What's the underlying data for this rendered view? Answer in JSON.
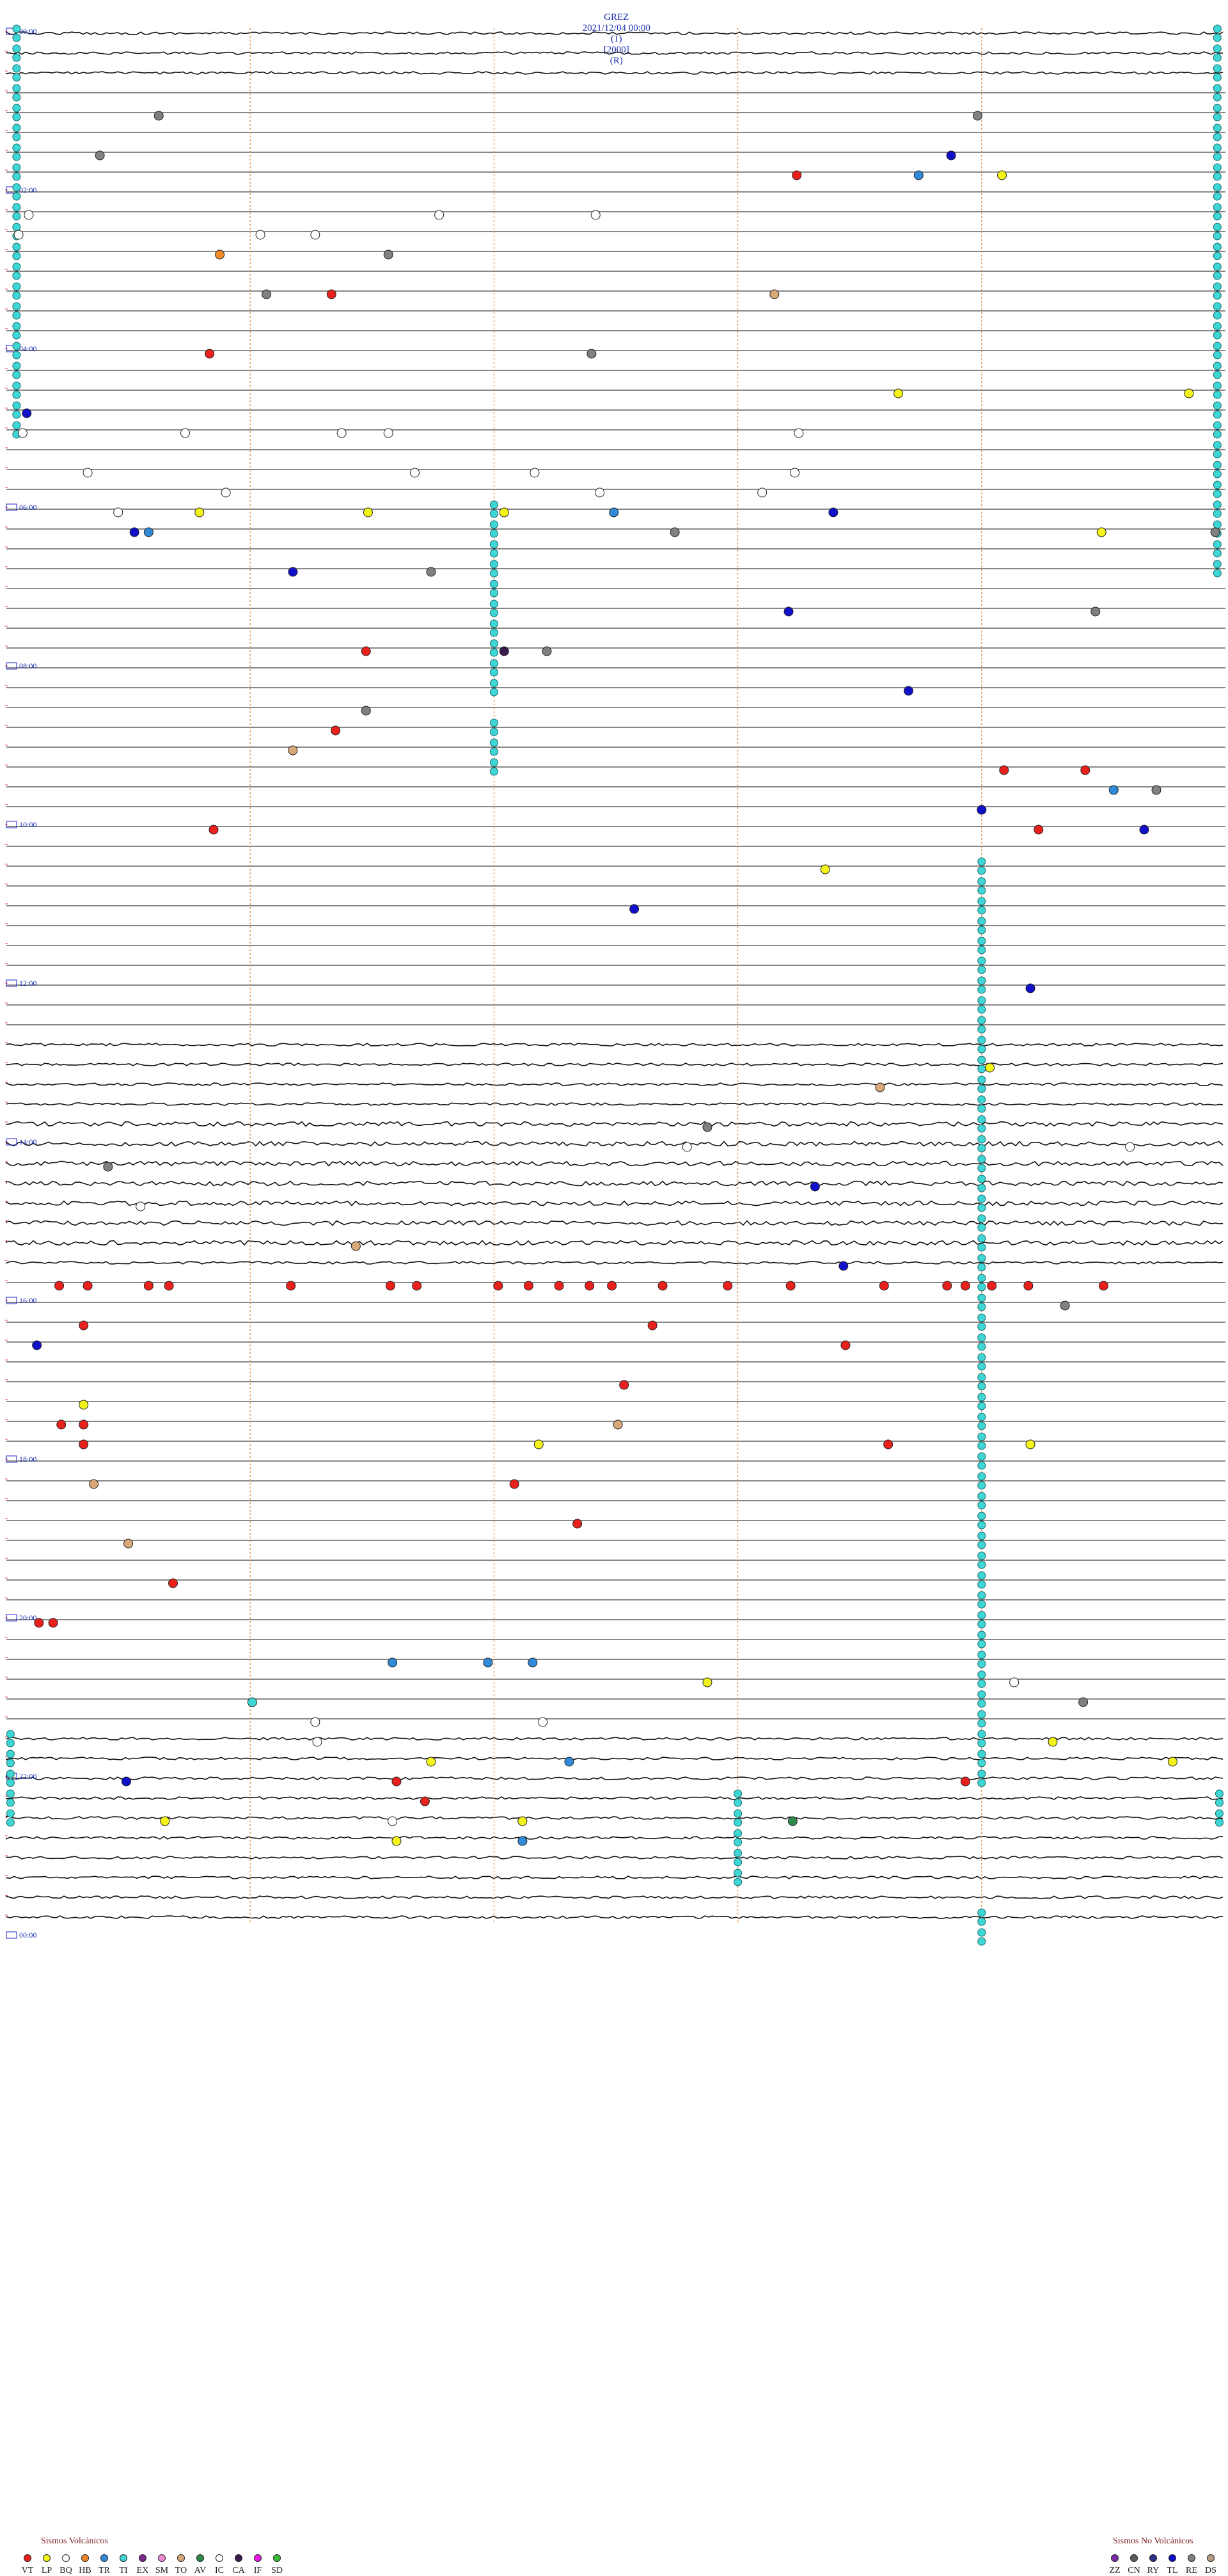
{
  "header": {
    "station": "GREZ",
    "datetime": "2021/12/04 00:00",
    "channel": "(1)",
    "scale": "[2000]",
    "flag": "(R)"
  },
  "chart_data": {
    "type": "scatter",
    "title": "GREZ 2021/12/04 00:00 (1) [2000] (R)",
    "xlabel": "",
    "ylabel": "",
    "xlim": [
      0,
      60
    ],
    "x_unit": "minute of row",
    "rows_per_hour": 4,
    "rows": 96,
    "hour_labels": [
      "00:00",
      "02:00",
      "04:00",
      "06:00",
      "08:00",
      "10:00",
      "12:00",
      "14:00",
      "16:00",
      "18:00",
      "20:00",
      "22:00",
      "00:00"
    ],
    "legend_placement": "bottom",
    "marker_colors": {
      "VT": "#e8211c",
      "LP": "#f4f418",
      "BQ": "#ffffff",
      "HB": "#f08a2a",
      "TR": "#2f8ad8",
      "TI": "#3fd6d6",
      "EX": "#7a2a8c",
      "SM": "#f08ad8",
      "TO": "#d8a878",
      "AV": "#2e8a4a",
      "IC": "#ffffff",
      "CA": "#3a1a4a",
      "IF": "#e818e8",
      "SD": "#3ab83a",
      "ZZ": "#7a2aa8",
      "CN": "#5a5a5a",
      "RY": "#303090",
      "TL": "#1010c8",
      "RE": "#808080",
      "DS": "#b89c80"
    },
    "events": [
      {
        "row": 4,
        "minute": 7.5,
        "type": "RE"
      },
      {
        "row": 4,
        "minute": 47.8,
        "type": "RE"
      },
      {
        "row": 6,
        "minute": 4.6,
        "type": "RE"
      },
      {
        "row": 6,
        "minute": 46.5,
        "type": "TL"
      },
      {
        "row": 7,
        "minute": 38.9,
        "type": "VT"
      },
      {
        "row": 7,
        "minute": 49.0,
        "type": "LP"
      },
      {
        "row": 7,
        "minute": 44.9,
        "type": "TR"
      },
      {
        "row": 9,
        "minute": 1.1,
        "type": "BQ"
      },
      {
        "row": 9,
        "minute": 21.3,
        "type": "BQ"
      },
      {
        "row": 9,
        "minute": 29.0,
        "type": "BQ"
      },
      {
        "row": 10,
        "minute": 0.6,
        "type": "BQ"
      },
      {
        "row": 10,
        "minute": 12.5,
        "type": "BQ"
      },
      {
        "row": 10,
        "minute": 15.2,
        "type": "BQ"
      },
      {
        "row": 11,
        "minute": 10.5,
        "type": "HB"
      },
      {
        "row": 11,
        "minute": 18.8,
        "type": "RE"
      },
      {
        "row": 13,
        "minute": 12.8,
        "type": "RE"
      },
      {
        "row": 13,
        "minute": 16.0,
        "type": "VT"
      },
      {
        "row": 13,
        "minute": 37.8,
        "type": "TO"
      },
      {
        "row": 16,
        "minute": 10.0,
        "type": "VT"
      },
      {
        "row": 16,
        "minute": 28.8,
        "type": "RE"
      },
      {
        "row": 18,
        "minute": 43.9,
        "type": "LP"
      },
      {
        "row": 18,
        "minute": 58.2,
        "type": "LP"
      },
      {
        "row": 19,
        "minute": 1.0,
        "type": "TL"
      },
      {
        "row": 20,
        "minute": 0.8,
        "type": "BQ"
      },
      {
        "row": 20,
        "minute": 8.8,
        "type": "BQ"
      },
      {
        "row": 20,
        "minute": 16.5,
        "type": "BQ"
      },
      {
        "row": 20,
        "minute": 18.8,
        "type": "BQ"
      },
      {
        "row": 20,
        "minute": 39.0,
        "type": "BQ"
      },
      {
        "row": 22,
        "minute": 4.0,
        "type": "BQ"
      },
      {
        "row": 22,
        "minute": 20.1,
        "type": "BQ"
      },
      {
        "row": 22,
        "minute": 26.0,
        "type": "BQ"
      },
      {
        "row": 22,
        "minute": 38.8,
        "type": "BQ"
      },
      {
        "row": 23,
        "minute": 10.8,
        "type": "BQ"
      },
      {
        "row": 23,
        "minute": 29.2,
        "type": "BQ"
      },
      {
        "row": 23,
        "minute": 37.2,
        "type": "BQ"
      },
      {
        "row": 24,
        "minute": 5.5,
        "type": "BQ"
      },
      {
        "row": 24,
        "minute": 9.5,
        "type": "LP"
      },
      {
        "row": 24,
        "minute": 17.8,
        "type": "LP"
      },
      {
        "row": 24,
        "minute": 24.5,
        "type": "LP"
      },
      {
        "row": 24,
        "minute": 29.9,
        "type": "TR"
      },
      {
        "row": 24,
        "minute": 40.7,
        "type": "TL"
      },
      {
        "row": 25,
        "minute": 7.0,
        "type": "TR"
      },
      {
        "row": 25,
        "minute": 6.3,
        "type": "TL"
      },
      {
        "row": 25,
        "minute": 32.9,
        "type": "RE"
      },
      {
        "row": 25,
        "minute": 59.5,
        "type": "RE"
      },
      {
        "row": 25,
        "minute": 53.9,
        "type": "LP"
      },
      {
        "row": 27,
        "minute": 14.1,
        "type": "TL"
      },
      {
        "row": 27,
        "minute": 20.9,
        "type": "RE"
      },
      {
        "row": 29,
        "minute": 38.5,
        "type": "TL"
      },
      {
        "row": 29,
        "minute": 53.6,
        "type": "RE"
      },
      {
        "row": 31,
        "minute": 17.7,
        "type": "VT"
      },
      {
        "row": 31,
        "minute": 24.5,
        "type": "CA"
      },
      {
        "row": 31,
        "minute": 26.6,
        "type": "RE"
      },
      {
        "row": 33,
        "minute": 44.4,
        "type": "TL"
      },
      {
        "row": 34,
        "minute": 17.7,
        "type": "RE"
      },
      {
        "row": 35,
        "minute": 16.2,
        "type": "VT"
      },
      {
        "row": 36,
        "minute": 14.1,
        "type": "TO"
      },
      {
        "row": 37,
        "minute": 53.1,
        "type": "VT"
      },
      {
        "row": 37,
        "minute": 49.1,
        "type": "VT"
      },
      {
        "row": 38,
        "minute": 54.5,
        "type": "TR"
      },
      {
        "row": 38,
        "minute": 56.6,
        "type": "RE"
      },
      {
        "row": 39,
        "minute": 48.0,
        "type": "TL"
      },
      {
        "row": 40,
        "minute": 10.2,
        "type": "VT"
      },
      {
        "row": 40,
        "minute": 50.8,
        "type": "VT"
      },
      {
        "row": 40,
        "minute": 56.0,
        "type": "TL"
      },
      {
        "row": 42,
        "minute": 40.3,
        "type": "LP"
      },
      {
        "row": 44,
        "minute": 30.9,
        "type": "TL"
      },
      {
        "row": 48,
        "minute": 50.4,
        "type": "TL"
      },
      {
        "row": 52,
        "minute": 48.4,
        "type": "LP"
      },
      {
        "row": 53,
        "minute": 43.0,
        "type": "TO"
      },
      {
        "row": 55,
        "minute": 34.5,
        "type": "RE"
      },
      {
        "row": 56,
        "minute": 55.3,
        "type": "BQ"
      },
      {
        "row": 56,
        "minute": 33.5,
        "type": "BQ"
      },
      {
        "row": 57,
        "minute": 5.0,
        "type": "RE"
      },
      {
        "row": 58,
        "minute": 39.8,
        "type": "TL"
      },
      {
        "row": 59,
        "minute": 6.6,
        "type": "BQ"
      },
      {
        "row": 61,
        "minute": 17.2,
        "type": "TO"
      },
      {
        "row": 62,
        "minute": 41.2,
        "type": "TL"
      },
      {
        "row": 63,
        "minute": 2.6,
        "type": "VT"
      },
      {
        "row": 63,
        "minute": 4.0,
        "type": "VT"
      },
      {
        "row": 63,
        "minute": 7.0,
        "type": "VT"
      },
      {
        "row": 63,
        "minute": 8.0,
        "type": "VT"
      },
      {
        "row": 63,
        "minute": 14.0,
        "type": "VT"
      },
      {
        "row": 63,
        "minute": 18.9,
        "type": "VT"
      },
      {
        "row": 63,
        "minute": 20.2,
        "type": "VT"
      },
      {
        "row": 63,
        "minute": 24.2,
        "type": "VT"
      },
      {
        "row": 63,
        "minute": 25.7,
        "type": "VT"
      },
      {
        "row": 63,
        "minute": 27.2,
        "type": "VT"
      },
      {
        "row": 63,
        "minute": 28.7,
        "type": "VT"
      },
      {
        "row": 63,
        "minute": 29.8,
        "type": "VT"
      },
      {
        "row": 63,
        "minute": 32.3,
        "type": "VT"
      },
      {
        "row": 63,
        "minute": 35.5,
        "type": "VT"
      },
      {
        "row": 63,
        "minute": 38.6,
        "type": "VT"
      },
      {
        "row": 63,
        "minute": 43.2,
        "type": "VT"
      },
      {
        "row": 63,
        "minute": 46.3,
        "type": "VT"
      },
      {
        "row": 63,
        "minute": 47.2,
        "type": "VT"
      },
      {
        "row": 63,
        "minute": 48.5,
        "type": "VT"
      },
      {
        "row": 63,
        "minute": 50.3,
        "type": "VT"
      },
      {
        "row": 63,
        "minute": 54.0,
        "type": "VT"
      },
      {
        "row": 64,
        "minute": 52.1,
        "type": "RE"
      },
      {
        "row": 65,
        "minute": 3.8,
        "type": "VT"
      },
      {
        "row": 65,
        "minute": 31.8,
        "type": "VT"
      },
      {
        "row": 66,
        "minute": 1.5,
        "type": "TL"
      },
      {
        "row": 66,
        "minute": 41.3,
        "type": "VT"
      },
      {
        "row": 68,
        "minute": 30.4,
        "type": "VT"
      },
      {
        "row": 69,
        "minute": 3.8,
        "type": "LP"
      },
      {
        "row": 70,
        "minute": 2.7,
        "type": "VT"
      },
      {
        "row": 70,
        "minute": 3.8,
        "type": "VT"
      },
      {
        "row": 70,
        "minute": 30.1,
        "type": "TO"
      },
      {
        "row": 71,
        "minute": 3.8,
        "type": "VT"
      },
      {
        "row": 71,
        "minute": 26.2,
        "type": "LP"
      },
      {
        "row": 71,
        "minute": 43.4,
        "type": "VT"
      },
      {
        "row": 71,
        "minute": 50.4,
        "type": "LP"
      },
      {
        "row": 73,
        "minute": 4.3,
        "type": "TO"
      },
      {
        "row": 73,
        "minute": 25.0,
        "type": "VT"
      },
      {
        "row": 75,
        "minute": 28.1,
        "type": "VT"
      },
      {
        "row": 76,
        "minute": 6.0,
        "type": "TO"
      },
      {
        "row": 78,
        "minute": 8.2,
        "type": "VT"
      },
      {
        "row": 80,
        "minute": 1.6,
        "type": "VT"
      },
      {
        "row": 80,
        "minute": 2.3,
        "type": "VT"
      },
      {
        "row": 82,
        "minute": 19.0,
        "type": "TR"
      },
      {
        "row": 82,
        "minute": 23.7,
        "type": "TR"
      },
      {
        "row": 82,
        "minute": 25.9,
        "type": "TR"
      },
      {
        "row": 83,
        "minute": 34.5,
        "type": "LP"
      },
      {
        "row": 83,
        "minute": 49.6,
        "type": "BQ"
      },
      {
        "row": 84,
        "minute": 53.0,
        "type": "RE"
      },
      {
        "row": 84,
        "minute": 12.1,
        "type": "TI"
      },
      {
        "row": 85,
        "minute": 15.2,
        "type": "BQ"
      },
      {
        "row": 85,
        "minute": 26.4,
        "type": "BQ"
      },
      {
        "row": 86,
        "minute": 15.3,
        "type": "BQ"
      },
      {
        "row": 86,
        "minute": 51.5,
        "type": "LP"
      },
      {
        "row": 87,
        "minute": 20.9,
        "type": "LP"
      },
      {
        "row": 87,
        "minute": 27.7,
        "type": "TR"
      },
      {
        "row": 87,
        "minute": 57.4,
        "type": "LP"
      },
      {
        "row": 88,
        "minute": 5.9,
        "type": "TL"
      },
      {
        "row": 88,
        "minute": 19.2,
        "type": "VT"
      },
      {
        "row": 88,
        "minute": 47.2,
        "type": "VT"
      },
      {
        "row": 89,
        "minute": 20.6,
        "type": "VT"
      },
      {
        "row": 90,
        "minute": 7.8,
        "type": "LP"
      },
      {
        "row": 90,
        "minute": 25.4,
        "type": "LP"
      },
      {
        "row": 90,
        "minute": 19.0,
        "type": "BQ"
      },
      {
        "row": 90,
        "minute": 38.7,
        "type": "AV"
      },
      {
        "row": 91,
        "minute": 19.2,
        "type": "LP"
      },
      {
        "row": 91,
        "minute": 25.4,
        "type": "TR"
      }
    ],
    "cyan_columns": [
      {
        "minute": 0.5,
        "from_row": 0,
        "to_row": 20
      },
      {
        "minute": 59.6,
        "from_row": 0,
        "to_row": 27
      },
      {
        "minute": 24.0,
        "from_row": 24,
        "to_row": 33
      },
      {
        "minute": 24.0,
        "from_row": 35,
        "to_row": 37
      },
      {
        "minute": 48.0,
        "from_row": 42,
        "to_row": 88
      },
      {
        "minute": 36.0,
        "from_row": 89,
        "to_row": 93
      },
      {
        "minute": 0.2,
        "from_row": 86,
        "to_row": 90
      },
      {
        "minute": 59.7,
        "from_row": 89,
        "to_row": 90
      },
      {
        "minute": 48.0,
        "from_row": 95,
        "to_row": 96
      }
    ],
    "hour_markers": {
      "minutes": [
        12,
        24,
        36,
        48
      ]
    }
  },
  "legend_volcanic": {
    "title": "Sismos Volcánicos",
    "items": [
      {
        "code": "VT",
        "color": "#e8211c"
      },
      {
        "code": "LP",
        "color": "#f4f418"
      },
      {
        "code": "BQ",
        "color": "#ffffff"
      },
      {
        "code": "HB",
        "color": "#f08a2a"
      },
      {
        "code": "TR",
        "color": "#2f8ad8"
      },
      {
        "code": "TI",
        "color": "#3fd6d6"
      },
      {
        "code": "EX",
        "color": "#7a2a8c"
      },
      {
        "code": "SM",
        "color": "#f08ad8"
      },
      {
        "code": "TO",
        "color": "#d8a878"
      },
      {
        "code": "AV",
        "color": "#2e8a4a"
      },
      {
        "code": "IC",
        "color": "#ffffff"
      },
      {
        "code": "CA",
        "color": "#3a1a4a"
      },
      {
        "code": "IF",
        "color": "#e818e8"
      },
      {
        "code": "SD",
        "color": "#3ab83a"
      }
    ]
  },
  "legend_nonvolcanic": {
    "title": "Sismos No Volcánicos",
    "items": [
      {
        "code": "ZZ",
        "color": "#7a2aa8"
      },
      {
        "code": "CN",
        "color": "#5a5a5a"
      },
      {
        "code": "RY",
        "color": "#303090"
      },
      {
        "code": "TL",
        "color": "#1010c8"
      },
      {
        "code": "RE",
        "color": "#808080"
      },
      {
        "code": "DS",
        "color": "#b89c80"
      }
    ]
  }
}
